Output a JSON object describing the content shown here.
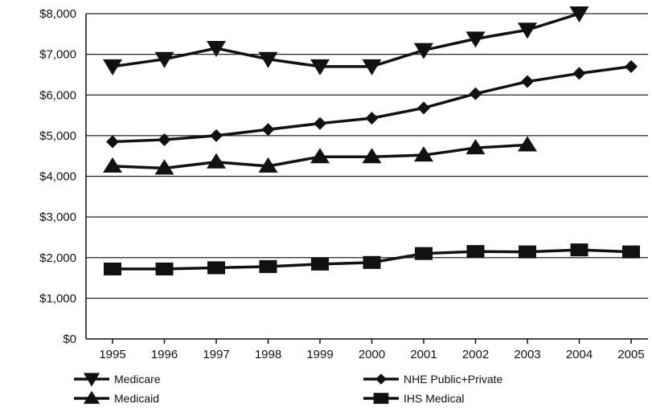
{
  "chart_data": {
    "type": "line",
    "title": "",
    "xlabel": "",
    "ylabel": "",
    "x": [
      "1995",
      "1996",
      "1997",
      "1998",
      "1999",
      "2000",
      "2001",
      "2002",
      "2003",
      "2004",
      "2005"
    ],
    "ylim": [
      0,
      8000
    ],
    "yticks": [
      0,
      1000,
      2000,
      3000,
      4000,
      5000,
      6000,
      7000,
      8000
    ],
    "ytick_labels": [
      "$0",
      "$1,000",
      "$2,000",
      "$3,000",
      "$4,000",
      "$5,000",
      "$6,000",
      "$7,000",
      "$8,000"
    ],
    "grid": true,
    "legend_placement": "bottom",
    "series": [
      {
        "name": "Medicare",
        "marker": "triangle-down-icon",
        "values": [
          6700,
          6880,
          7150,
          6880,
          6700,
          6700,
          7100,
          7380,
          7600,
          8000,
          null
        ]
      },
      {
        "name": "NHE Public+Private",
        "marker": "diamond-icon",
        "values": [
          4850,
          4900,
          5000,
          5150,
          5300,
          5430,
          5680,
          6030,
          6330,
          6530,
          6700
        ]
      },
      {
        "name": "Medicaid",
        "marker": "triangle-up-icon",
        "values": [
          4250,
          4200,
          4350,
          4250,
          4480,
          4480,
          4520,
          4700,
          4770,
          null,
          null
        ]
      },
      {
        "name": "IHS Medical",
        "marker": "square-icon",
        "values": [
          1720,
          1720,
          1750,
          1780,
          1840,
          1880,
          2100,
          2150,
          2140,
          2190,
          2140
        ]
      }
    ],
    "style": {
      "line_color": "#111111",
      "grid_color": "#222222",
      "background": "#ffffff"
    }
  }
}
